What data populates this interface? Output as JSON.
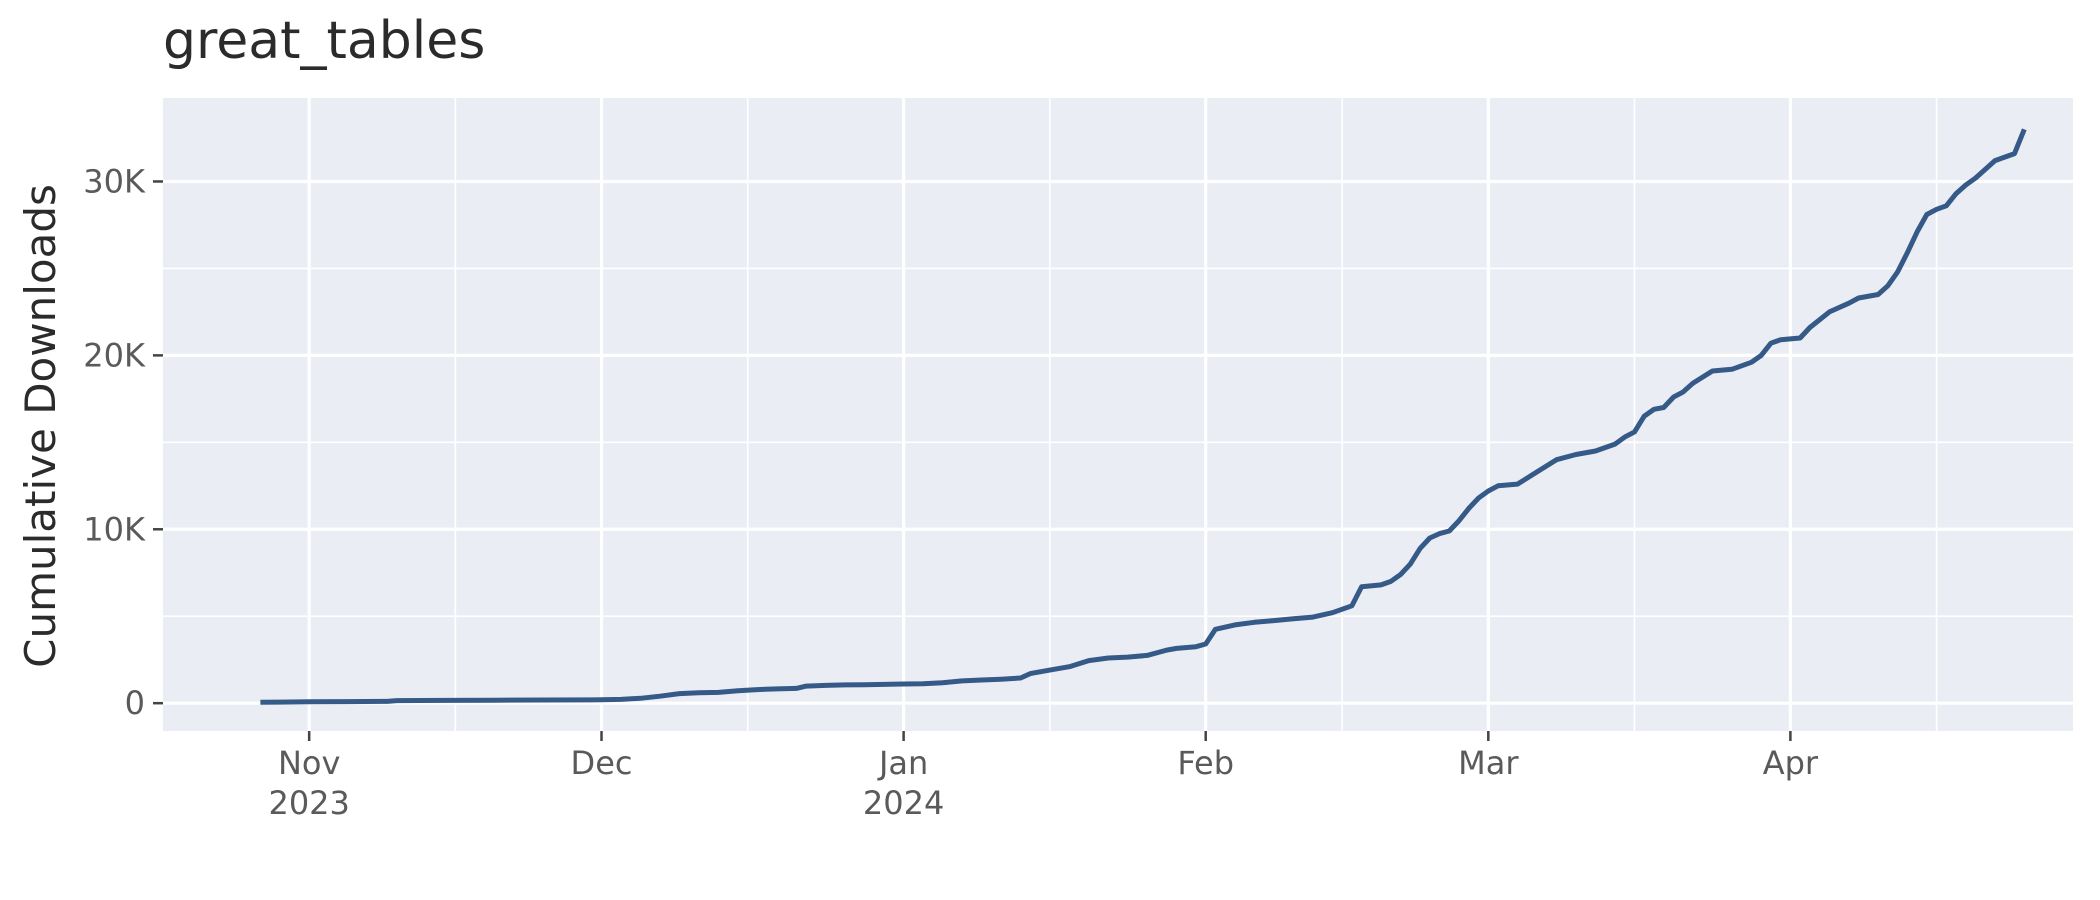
{
  "chart_data": {
    "type": "line",
    "title": "great_tables",
    "xlabel": "",
    "ylabel": "Cumulative Downloads",
    "xlim": [
      "2023-10-17",
      "2024-04-30"
    ],
    "ylim": [
      -1600,
      34800
    ],
    "y_ticks": [
      {
        "value": 0,
        "label": "0"
      },
      {
        "value": 10000,
        "label": "10K"
      },
      {
        "value": 20000,
        "label": "20K"
      },
      {
        "value": 30000,
        "label": "30K"
      }
    ],
    "x_ticks": [
      {
        "date": "2023-11-01",
        "label": "Nov",
        "sublabel": "2023"
      },
      {
        "date": "2023-12-01",
        "label": "Dec",
        "sublabel": ""
      },
      {
        "date": "2024-01-01",
        "label": "Jan",
        "sublabel": "2024"
      },
      {
        "date": "2024-02-01",
        "label": "Feb",
        "sublabel": ""
      },
      {
        "date": "2024-03-01",
        "label": "Mar",
        "sublabel": ""
      },
      {
        "date": "2024-04-01",
        "label": "Apr",
        "sublabel": ""
      }
    ],
    "x_minor_ticks": [
      "2023-11-16",
      "2023-12-16",
      "2024-01-16",
      "2024-02-15",
      "2024-03-16",
      "2024-04-16"
    ],
    "grid": true,
    "colors": {
      "panel": "#ebedf5",
      "grid": "#ffffff",
      "line": "#365a87",
      "tick": "#444444"
    },
    "series": [
      {
        "points": [
          [
            "2023-10-27",
            50
          ],
          [
            "2023-10-29",
            60
          ],
          [
            "2023-11-01",
            80
          ],
          [
            "2023-11-05",
            90
          ],
          [
            "2023-11-09",
            100
          ],
          [
            "2023-11-10",
            150
          ],
          [
            "2023-11-15",
            160
          ],
          [
            "2023-11-20",
            170
          ],
          [
            "2023-11-25",
            180
          ],
          [
            "2023-11-30",
            190
          ],
          [
            "2023-12-01",
            200
          ],
          [
            "2023-12-03",
            220
          ],
          [
            "2023-12-05",
            280
          ],
          [
            "2023-12-07",
            400
          ],
          [
            "2023-12-09",
            550
          ],
          [
            "2023-12-11",
            600
          ],
          [
            "2023-12-13",
            620
          ],
          [
            "2023-12-15",
            720
          ],
          [
            "2023-12-17",
            780
          ],
          [
            "2023-12-19",
            820
          ],
          [
            "2023-12-21",
            850
          ],
          [
            "2023-12-22",
            980
          ],
          [
            "2023-12-24",
            1020
          ],
          [
            "2023-12-26",
            1050
          ],
          [
            "2023-12-28",
            1060
          ],
          [
            "2023-12-30",
            1080
          ],
          [
            "2024-01-01",
            1100
          ],
          [
            "2024-01-03",
            1120
          ],
          [
            "2024-01-05",
            1180
          ],
          [
            "2024-01-07",
            1280
          ],
          [
            "2024-01-09",
            1330
          ],
          [
            "2024-01-11",
            1380
          ],
          [
            "2024-01-13",
            1450
          ],
          [
            "2024-01-14",
            1700
          ],
          [
            "2024-01-16",
            1900
          ],
          [
            "2024-01-18",
            2100
          ],
          [
            "2024-01-20",
            2450
          ],
          [
            "2024-01-22",
            2600
          ],
          [
            "2024-01-24",
            2650
          ],
          [
            "2024-01-26",
            2750
          ],
          [
            "2024-01-28",
            3050
          ],
          [
            "2024-01-29",
            3150
          ],
          [
            "2024-01-31",
            3250
          ],
          [
            "2024-02-01",
            3400
          ],
          [
            "2024-02-02",
            4250
          ],
          [
            "2024-02-04",
            4500
          ],
          [
            "2024-02-06",
            4650
          ],
          [
            "2024-02-08",
            4750
          ],
          [
            "2024-02-10",
            4850
          ],
          [
            "2024-02-12",
            4950
          ],
          [
            "2024-02-14",
            5200
          ],
          [
            "2024-02-16",
            5600
          ],
          [
            "2024-02-17",
            6700
          ],
          [
            "2024-02-19",
            6800
          ],
          [
            "2024-02-20",
            7000
          ],
          [
            "2024-02-21",
            7400
          ],
          [
            "2024-02-22",
            8000
          ],
          [
            "2024-02-23",
            8900
          ],
          [
            "2024-02-24",
            9500
          ],
          [
            "2024-02-25",
            9750
          ],
          [
            "2024-02-26",
            9900
          ],
          [
            "2024-02-27",
            10500
          ],
          [
            "2024-02-28",
            11200
          ],
          [
            "2024-02-29",
            11800
          ],
          [
            "2024-03-01",
            12200
          ],
          [
            "2024-03-02",
            12500
          ],
          [
            "2024-03-04",
            12600
          ],
          [
            "2024-03-06",
            13300
          ],
          [
            "2024-03-08",
            14000
          ],
          [
            "2024-03-10",
            14300
          ],
          [
            "2024-03-12",
            14500
          ],
          [
            "2024-03-14",
            14900
          ],
          [
            "2024-03-15",
            15300
          ],
          [
            "2024-03-16",
            15600
          ],
          [
            "2024-03-17",
            16500
          ],
          [
            "2024-03-18",
            16900
          ],
          [
            "2024-03-19",
            17000
          ],
          [
            "2024-03-20",
            17600
          ],
          [
            "2024-03-21",
            17900
          ],
          [
            "2024-03-22",
            18400
          ],
          [
            "2024-03-24",
            19100
          ],
          [
            "2024-03-26",
            19200
          ],
          [
            "2024-03-28",
            19600
          ],
          [
            "2024-03-29",
            20000
          ],
          [
            "2024-03-30",
            20700
          ],
          [
            "2024-03-31",
            20900
          ],
          [
            "2024-04-02",
            21000
          ],
          [
            "2024-04-03",
            21600
          ],
          [
            "2024-04-05",
            22500
          ],
          [
            "2024-04-07",
            23000
          ],
          [
            "2024-04-08",
            23300
          ],
          [
            "2024-04-10",
            23500
          ],
          [
            "2024-04-11",
            24000
          ],
          [
            "2024-04-12",
            24800
          ],
          [
            "2024-04-13",
            25900
          ],
          [
            "2024-04-14",
            27100
          ],
          [
            "2024-04-15",
            28100
          ],
          [
            "2024-04-16",
            28400
          ],
          [
            "2024-04-17",
            28600
          ],
          [
            "2024-04-18",
            29300
          ],
          [
            "2024-04-19",
            29800
          ],
          [
            "2024-04-20",
            30200
          ],
          [
            "2024-04-22",
            31200
          ],
          [
            "2024-04-24",
            31600
          ],
          [
            "2024-04-25",
            33000
          ]
        ]
      }
    ]
  }
}
